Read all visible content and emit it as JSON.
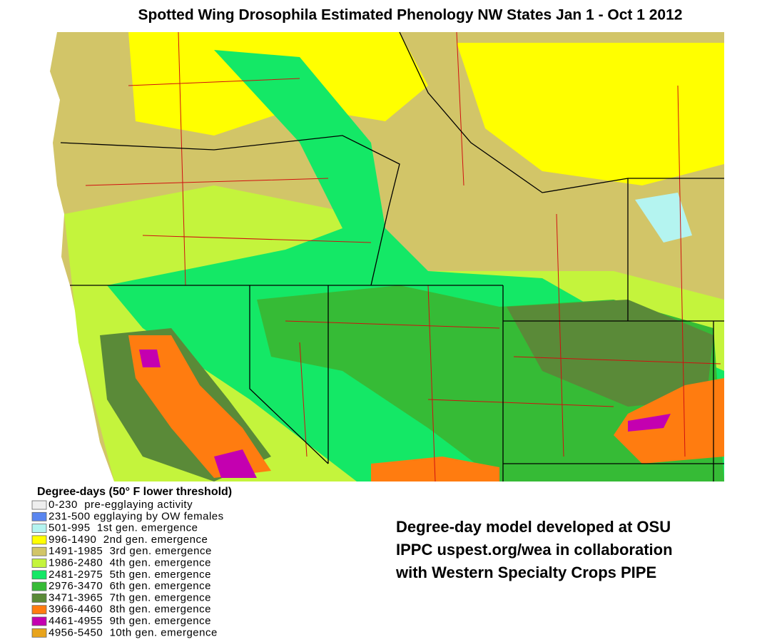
{
  "title": "Spotted Wing Drosophila Estimated Phenology NW States Jan 1 - Oct 1 2012",
  "legend": {
    "title": "Degree-days (50° F lower threshold)",
    "entries": [
      {
        "label": "0-230  pre-egglaying activity",
        "color": "#eeeeee"
      },
      {
        "label": "231-500 egglaying by OW females",
        "color": "#5a86f0"
      },
      {
        "label": "501-995  1st gen. emergence",
        "color": "#b4f4f0"
      },
      {
        "label": "996-1490  2nd gen. emergence",
        "color": "#ffff00"
      },
      {
        "label": "1491-1985  3rd gen. emergence",
        "color": "#d2c568"
      },
      {
        "label": "1986-2480  4th gen. emergence",
        "color": "#c4f43c"
      },
      {
        "label": "2481-2975  5th gen. emergence",
        "color": "#14e866"
      },
      {
        "label": "2976-3470  6th gen. emergence",
        "color": "#36bb36"
      },
      {
        "label": "3471-3965  7th gen. emergence",
        "color": "#5a8a38"
      },
      {
        "label": "3966-4460  8th gen. emergence",
        "color": "#ff7c10"
      },
      {
        "label": "4461-4955  9th gen. emergence",
        "color": "#c400b0"
      },
      {
        "label": "4956-5450  10th gen. emergence",
        "color": "#e8a41c"
      }
    ]
  },
  "credit": [
    "Degree-day model developed at OSU",
    "IPPC uspest.org/wea in collaboration",
    "with Western Specialty Crops PIPE"
  ]
}
